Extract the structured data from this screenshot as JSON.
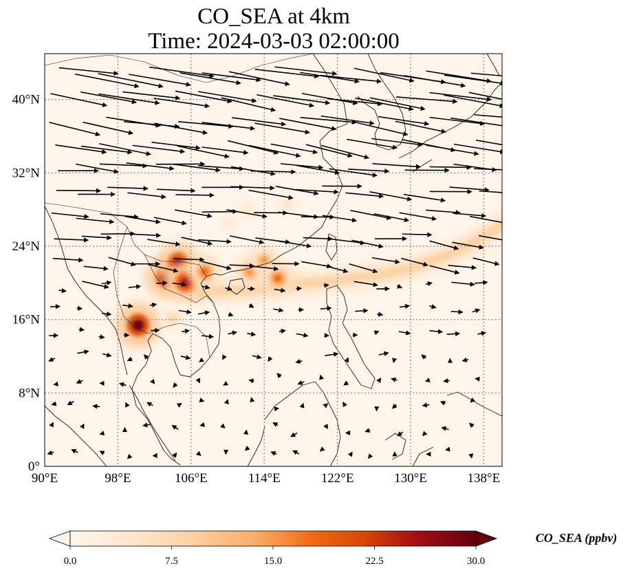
{
  "title": {
    "line1": "CO_SEA at 4km",
    "line2": "Time: 2024-03-03 02:00:00"
  },
  "map": {
    "lon_range": [
      90,
      140
    ],
    "lat_range": [
      0,
      45
    ],
    "lon_ticks": [
      {
        "value": 90,
        "label": "90°E"
      },
      {
        "value": 98,
        "label": "98°E"
      },
      {
        "value": 106,
        "label": "106°E"
      },
      {
        "value": 114,
        "label": "114°E"
      },
      {
        "value": 122,
        "label": "122°E"
      },
      {
        "value": 130,
        "label": "130°E"
      },
      {
        "value": 138,
        "label": "138°E"
      }
    ],
    "lat_ticks": [
      {
        "value": 0,
        "label": "0°"
      },
      {
        "value": 8,
        "label": "8°N"
      },
      {
        "value": 16,
        "label": "16°N"
      },
      {
        "value": 24,
        "label": "24°N"
      },
      {
        "value": 32,
        "label": "32°N"
      },
      {
        "value": 40,
        "label": "40°N"
      }
    ],
    "gridlines": true,
    "background_color": "#fff5eb",
    "plume_hotspots": [
      {
        "lon": 100.2,
        "lat": 15.4,
        "value": 30
      },
      {
        "lon": 103.3,
        "lat": 20.6,
        "value": 28
      },
      {
        "lon": 104.6,
        "lat": 22.2,
        "value": 27
      },
      {
        "lon": 105.4,
        "lat": 20.1,
        "value": 26
      },
      {
        "lon": 107.5,
        "lat": 21.2,
        "value": 18
      },
      {
        "lon": 112.5,
        "lat": 21.3,
        "value": 17
      },
      {
        "lon": 114.0,
        "lat": 22.4,
        "value": 15
      },
      {
        "lon": 115.5,
        "lat": 20.5,
        "value": 18
      },
      {
        "lon": 104.0,
        "lat": 16.2,
        "value": 8
      },
      {
        "lon": 112.0,
        "lat": 28.0,
        "value": 5
      },
      {
        "lon": 116.5,
        "lat": 28.5,
        "value": 5
      },
      {
        "lon": 110.0,
        "lat": 26.5,
        "value": 4
      }
    ],
    "plume_band": [
      {
        "lon": 107,
        "lat": 19.0
      },
      {
        "lon": 112,
        "lat": 19.2
      },
      {
        "lon": 117,
        "lat": 19.8
      },
      {
        "lon": 121,
        "lat": 20.2
      },
      {
        "lon": 126,
        "lat": 20.8
      },
      {
        "lon": 130,
        "lat": 21.6
      },
      {
        "lon": 134,
        "lat": 23.0
      },
      {
        "lon": 137,
        "lat": 24.5
      },
      {
        "lon": 140,
        "lat": 26.3
      }
    ],
    "wind_summary": "westerly flow north of 20°N, weak variable flow south"
  },
  "colorbar": {
    "label": "CO_SEA (ppbv)",
    "min": 0,
    "max": 30,
    "extend": "both",
    "colormap": "OrRd",
    "ticks": [
      {
        "value": 0,
        "label": "0.0"
      },
      {
        "value": 7.5,
        "label": "7.5"
      },
      {
        "value": 15,
        "label": "15.0"
      },
      {
        "value": 22.5,
        "label": "22.5"
      },
      {
        "value": 30,
        "label": "30.0"
      }
    ],
    "colors": [
      "#fff5eb",
      "#fee6ce",
      "#fdd0a2",
      "#fdae6b",
      "#f16913",
      "#d94801",
      "#a50f15",
      "#67000d"
    ]
  }
}
